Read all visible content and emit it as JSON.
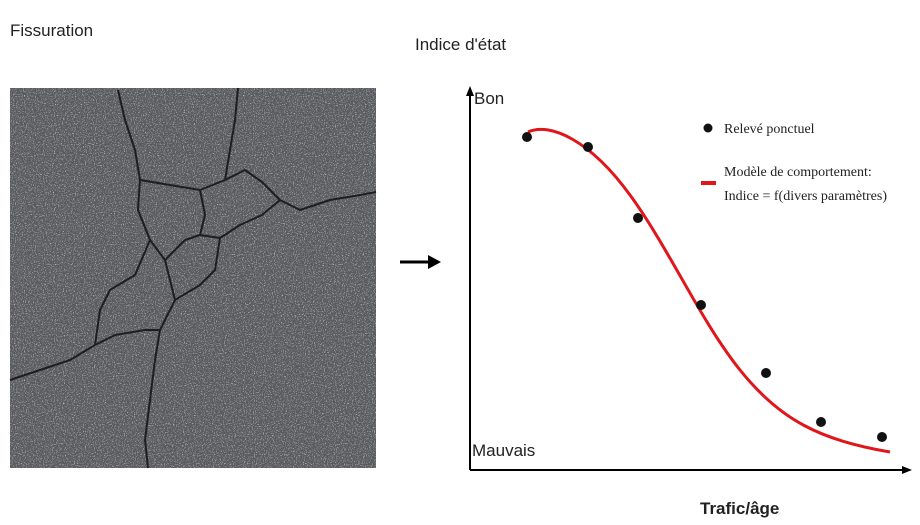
{
  "left": {
    "title": "Fissuration"
  },
  "chart": {
    "title": "Indice d'état",
    "y_top": "Bon",
    "y_bottom": "Mauvais",
    "x_label": "Trafic/âge",
    "legend": {
      "points": "Relevé ponctuel",
      "model_line1": "Modèle de comportement:",
      "model_line2": "Indice = f(divers paramètres)"
    }
  }
}
